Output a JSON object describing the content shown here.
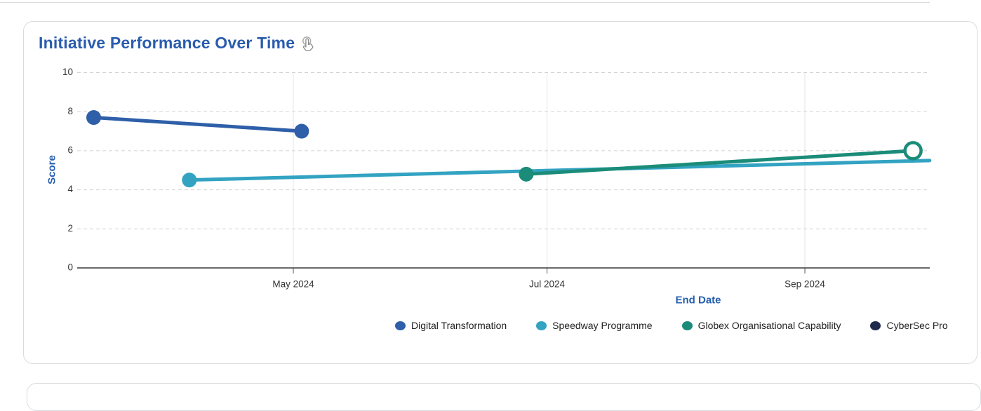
{
  "chart_data": {
    "type": "line",
    "title": "Initiative Performance Over Time",
    "xlabel": "End Date",
    "ylabel": "Score",
    "ylim": [
      0,
      10
    ],
    "grid": true,
    "legend_position": "bottom",
    "y_ticks": [
      0,
      2,
      4,
      6,
      8,
      10
    ],
    "x_ticks": [
      {
        "label": "May 2024",
        "date": "2024-05-01"
      },
      {
        "label": "Jul 2024",
        "date": "2024-07-01"
      },
      {
        "label": "Sep 2024",
        "date": "2024-09-01"
      }
    ],
    "series": [
      {
        "name": "Digital Transformation",
        "color": "#2e5fa8",
        "points": [
          {
            "date": "2024-03-14",
            "value": 7.7,
            "marker": "filled"
          },
          {
            "date": "2024-05-03",
            "value": 7.0,
            "marker": "filled"
          }
        ]
      },
      {
        "name": "Speedway Programme",
        "color": "#33a3c2",
        "points": [
          {
            "date": "2024-04-06",
            "value": 4.5,
            "marker": "filled"
          },
          {
            "date": "2024-10-01",
            "value": 5.5,
            "marker": "none"
          }
        ]
      },
      {
        "name": "Globex Organisational Capability",
        "color": "#1b8c79",
        "points": [
          {
            "date": "2024-06-26",
            "value": 4.8,
            "marker": "filled"
          },
          {
            "date": "2024-09-27",
            "value": 6.0,
            "marker": "open"
          }
        ]
      },
      {
        "name": "CyberSec Pro",
        "color": "#1e2b4d",
        "points": []
      }
    ]
  }
}
